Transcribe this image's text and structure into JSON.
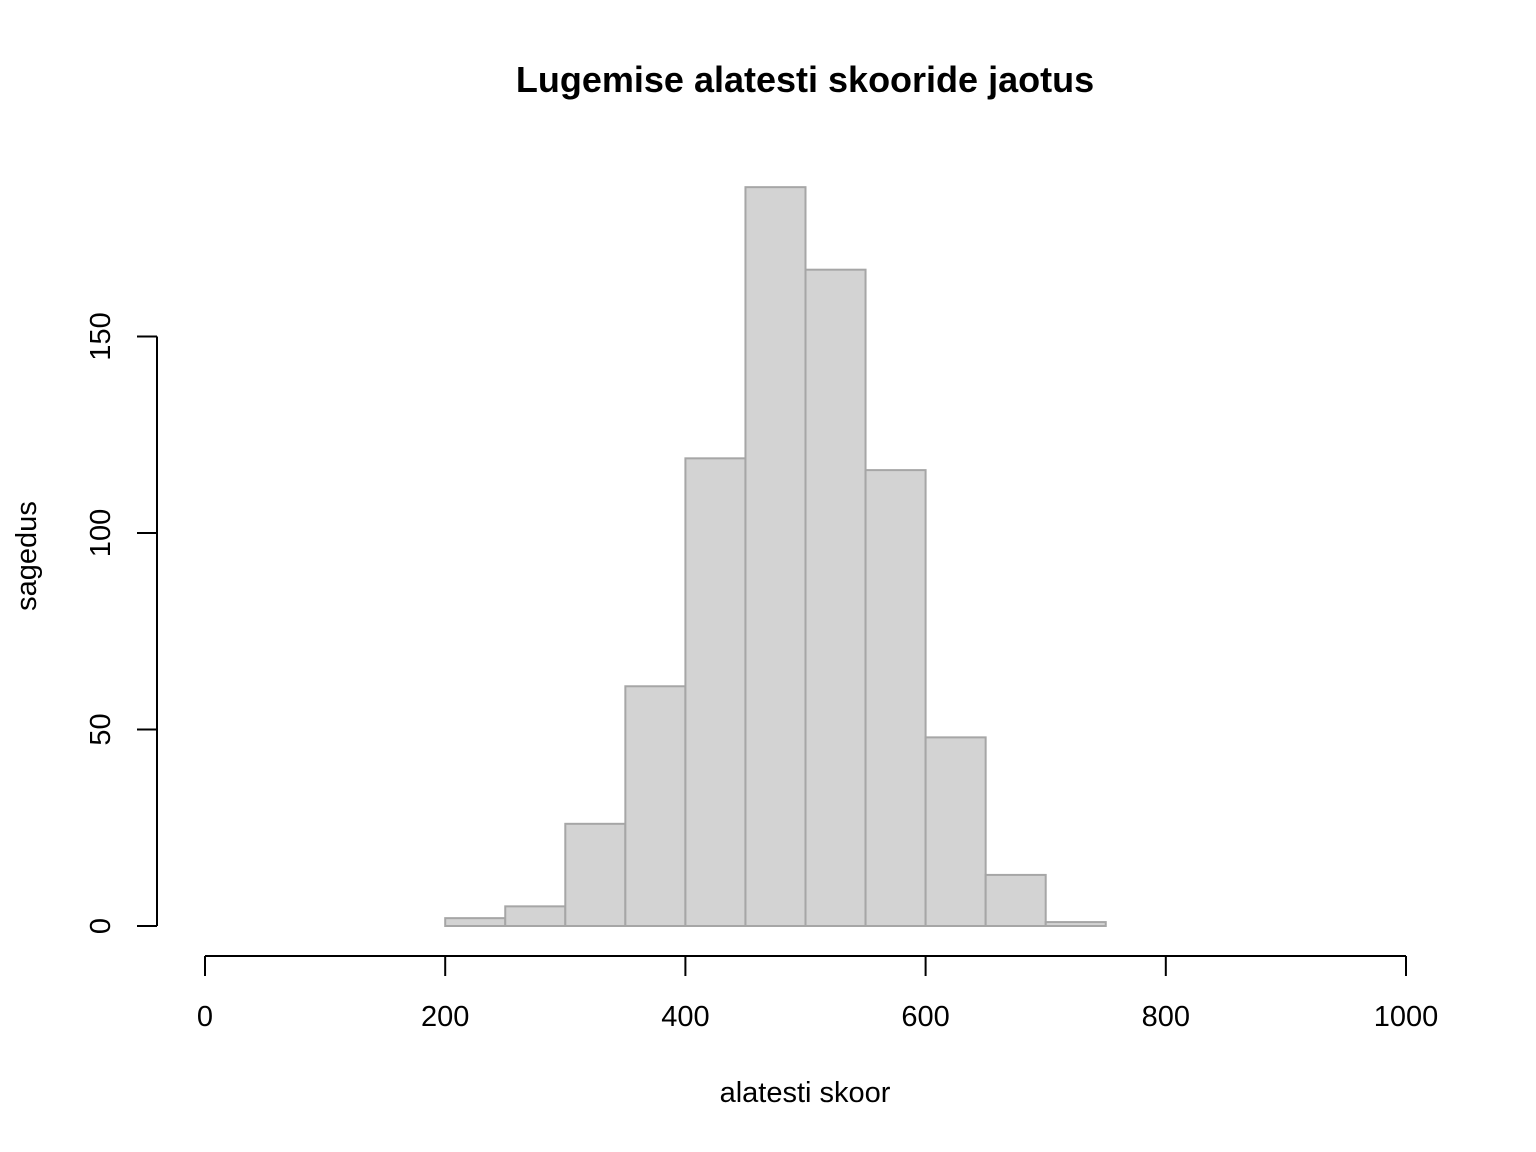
{
  "chart_data": {
    "type": "bar",
    "title": "Lugemise alatesti skooride jaotus",
    "xlabel": "alatesti skoor",
    "ylabel": "sagedus",
    "xlim": [
      0,
      1000
    ],
    "ylim": [
      0,
      190
    ],
    "x_ticks": [
      0,
      200,
      400,
      600,
      800,
      1000
    ],
    "y_ticks": [
      0,
      50,
      100,
      150
    ],
    "bins": [
      {
        "start": 200,
        "end": 250,
        "count": 2
      },
      {
        "start": 250,
        "end": 300,
        "count": 5
      },
      {
        "start": 300,
        "end": 350,
        "count": 26
      },
      {
        "start": 350,
        "end": 400,
        "count": 61
      },
      {
        "start": 400,
        "end": 450,
        "count": 119
      },
      {
        "start": 450,
        "end": 500,
        "count": 188
      },
      {
        "start": 500,
        "end": 550,
        "count": 167
      },
      {
        "start": 550,
        "end": 600,
        "count": 116
      },
      {
        "start": 600,
        "end": 650,
        "count": 48
      },
      {
        "start": 650,
        "end": 700,
        "count": 13
      },
      {
        "start": 700,
        "end": 750,
        "count": 1
      }
    ],
    "bar_fill": "#d3d3d3",
    "bar_stroke": "#a6a6a6",
    "grid": false,
    "legend": "none"
  }
}
